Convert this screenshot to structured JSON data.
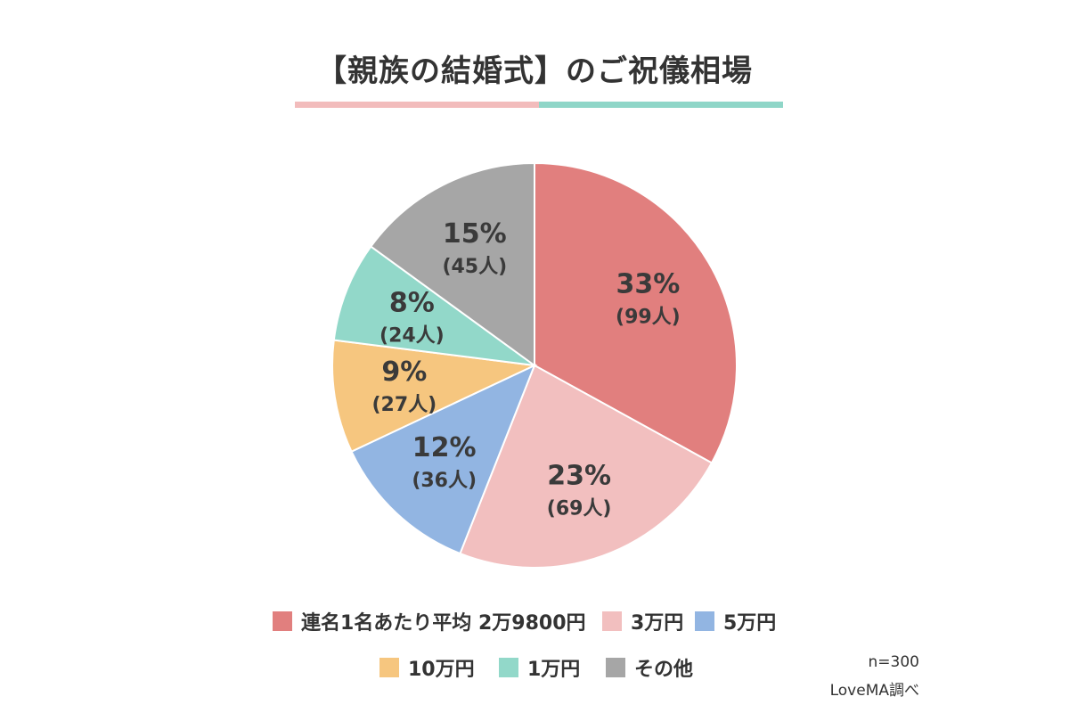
{
  "title": "【親族の結婚式】のご祝儀相場",
  "colors": {
    "title_bar_left": "#f2bcbc",
    "title_bar_right": "#8fd6c8"
  },
  "chart_data": {
    "type": "pie",
    "slices": [
      {
        "label": "連名1名あたり平均 2万9800円",
        "percent": 33,
        "percent_label": "33%",
        "count_label": "(99人)",
        "color": "#e17f7e"
      },
      {
        "label": "3万円",
        "percent": 23,
        "percent_label": "23%",
        "count_label": "(69人)",
        "color": "#f2bfbf"
      },
      {
        "label": "5万円",
        "percent": 12,
        "percent_label": "12%",
        "count_label": "(36人)",
        "color": "#92b5e2"
      },
      {
        "label": "10万円",
        "percent": 9,
        "percent_label": "9%",
        "count_label": "(27人)",
        "color": "#f6c67f"
      },
      {
        "label": "1万円",
        "percent": 8,
        "percent_label": "8%",
        "count_label": "(24人)",
        "color": "#92d8c9"
      },
      {
        "label": "その他",
        "percent": 15,
        "percent_label": "15%",
        "count_label": "(45人)",
        "color": "#a6a6a6"
      }
    ],
    "legend_placement": "bottom"
  },
  "notes": {
    "sample": "n=300",
    "source": "LoveMA調べ"
  }
}
